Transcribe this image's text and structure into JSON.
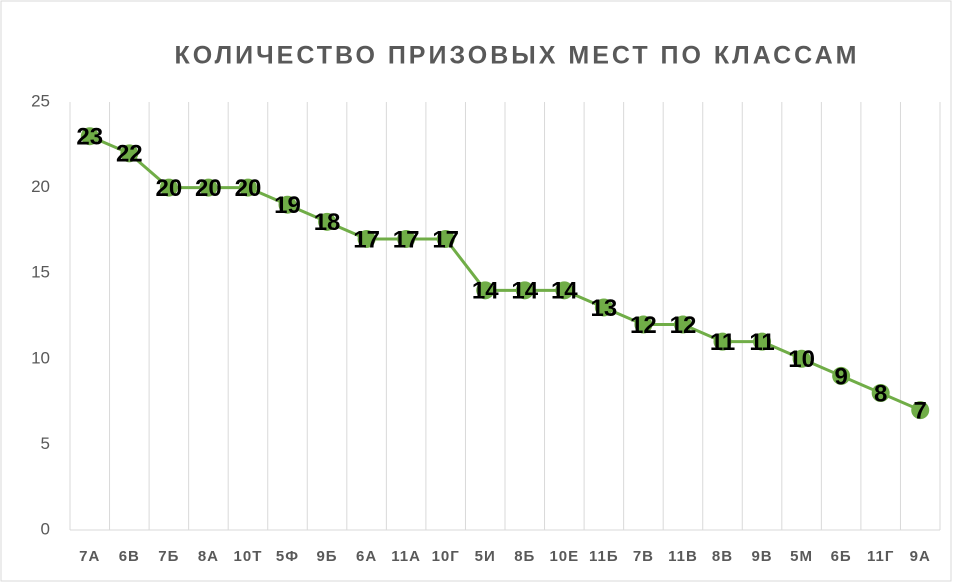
{
  "chart_data": {
    "type": "line",
    "title": "КОЛИЧЕСТВО ПРИЗОВЫХ МЕСТ ПО КЛАССАМ",
    "categories": [
      "7А",
      "6В",
      "7Б",
      "8А",
      "10Т",
      "5Ф",
      "9Б",
      "6А",
      "11А",
      "10Г",
      "5И",
      "8Б",
      "10Е",
      "11Б",
      "7В",
      "11В",
      "8В",
      "9В",
      "5М",
      "6Б",
      "11Г",
      "9А"
    ],
    "values": [
      23,
      22,
      20,
      20,
      20,
      19,
      18,
      17,
      17,
      17,
      14,
      14,
      14,
      13,
      12,
      12,
      11,
      11,
      10,
      9,
      8,
      7
    ],
    "color": "#70ad47",
    "ylim": [
      0,
      25
    ],
    "yticks": [
      0,
      5,
      10,
      15,
      20,
      25
    ],
    "grid": true
  }
}
